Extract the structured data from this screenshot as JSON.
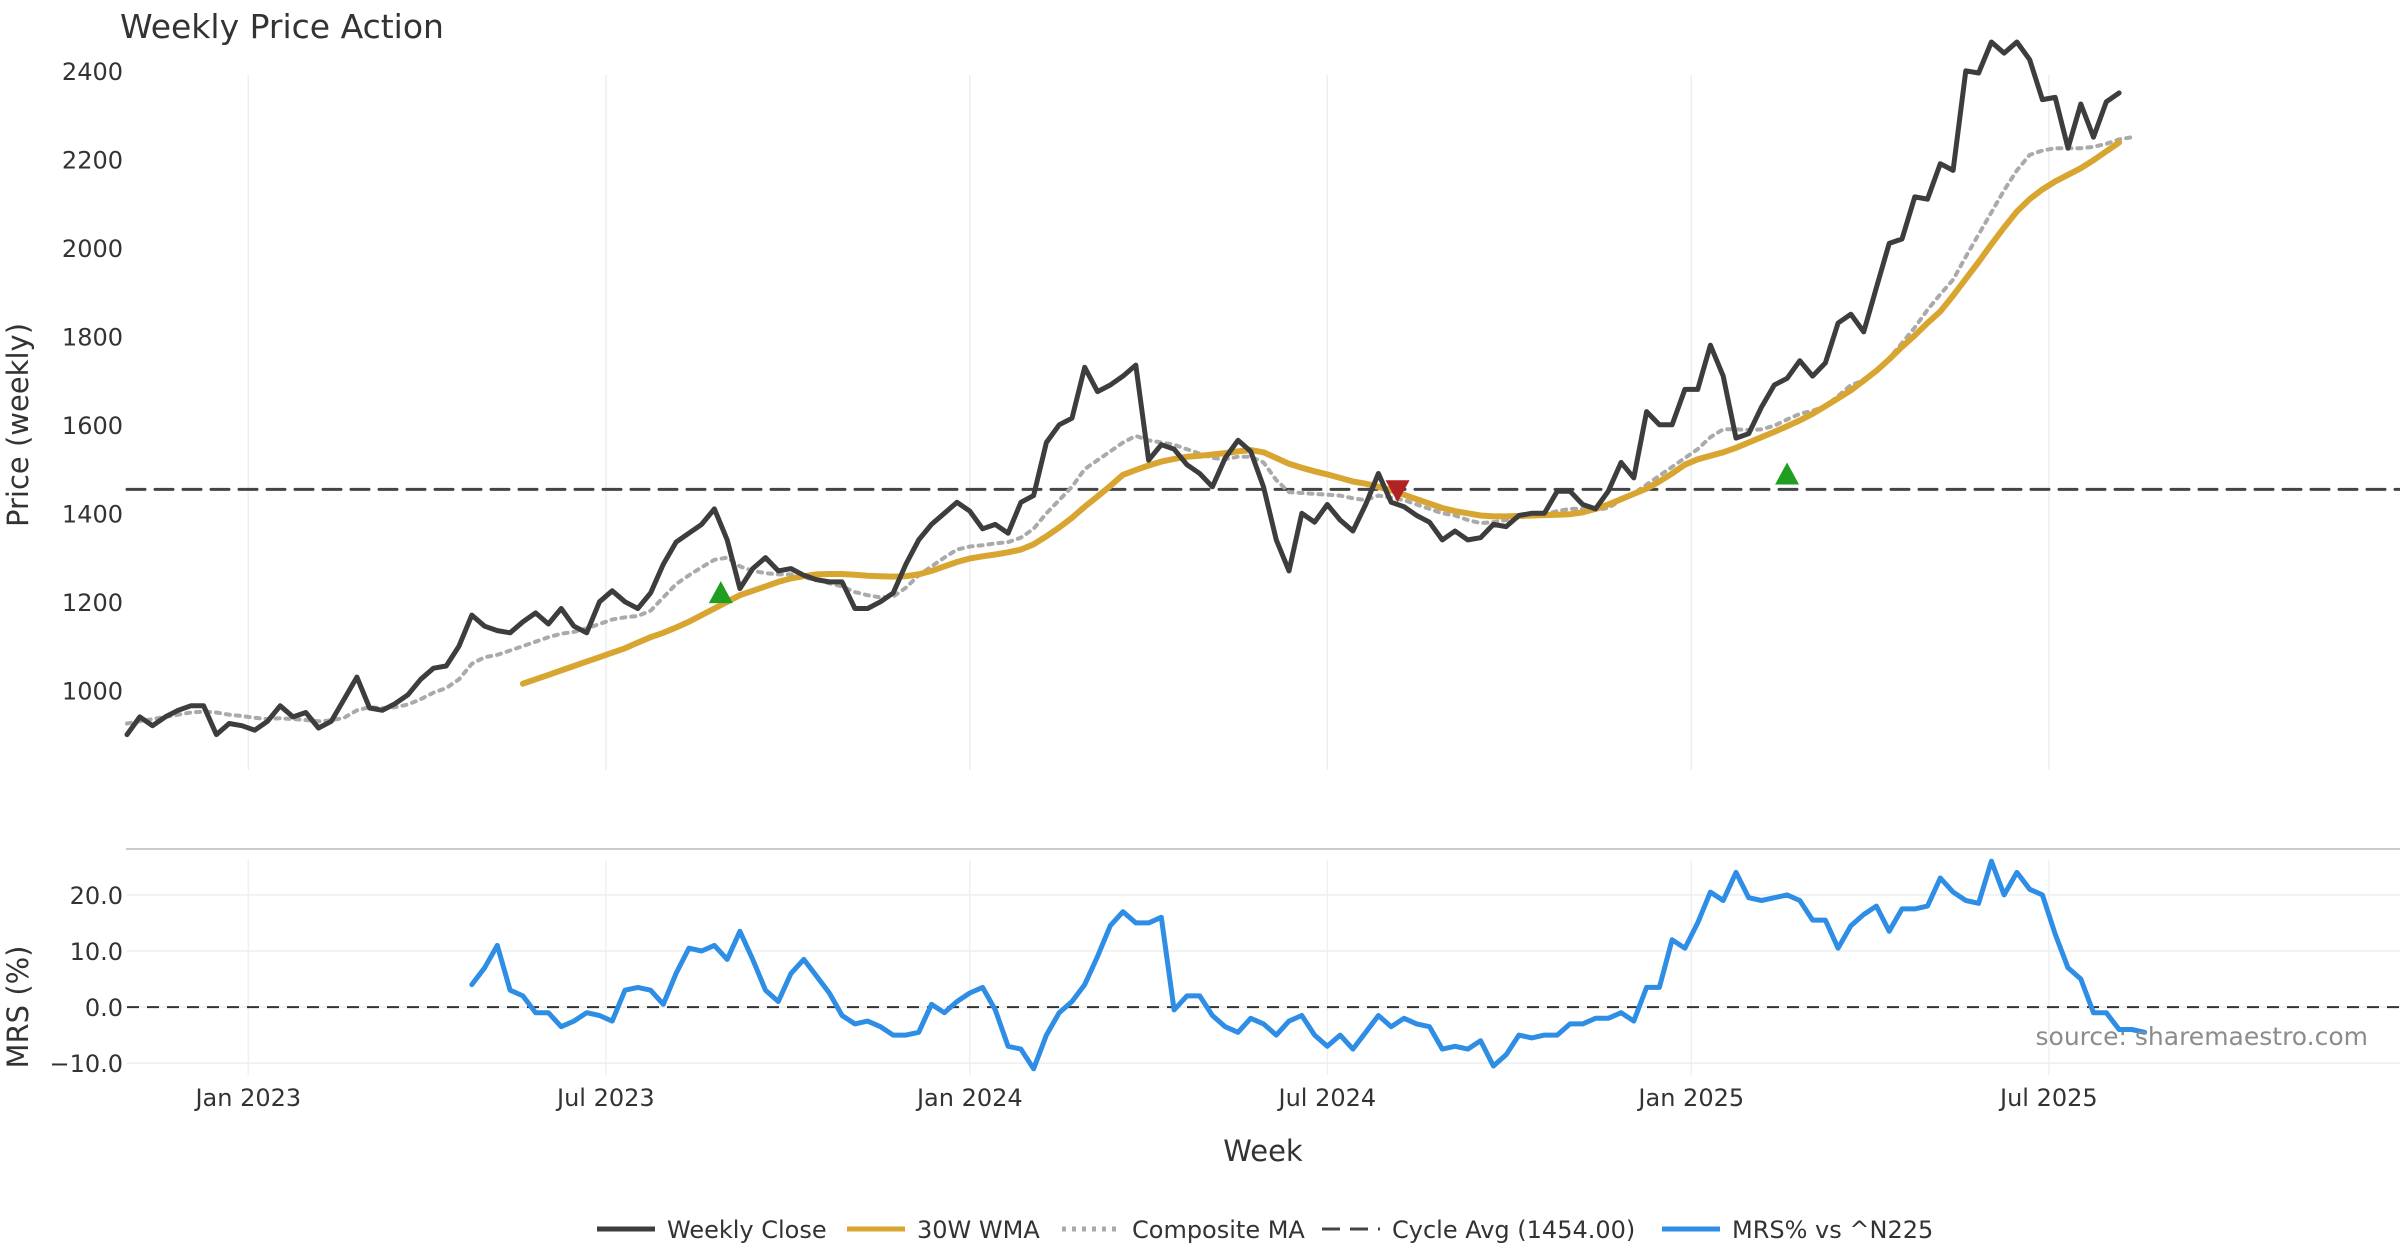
{
  "chart_data": [
    {
      "type": "line",
      "title": "Weekly Price Action",
      "xlabel": "",
      "ylabel": "Price (weekly)",
      "ylim": [
        820,
        2560
      ],
      "xlim": [
        0,
        178
      ],
      "grid": true,
      "x_tick_labels": [
        {
          "label": "Jan 2023",
          "x": 9.5
        },
        {
          "label": "Jul 2023",
          "x": 37.5
        },
        {
          "label": "Jan 2024",
          "x": 66
        },
        {
          "label": "Jul 2024",
          "x": 94
        },
        {
          "label": "Jan 2025",
          "x": 122.5
        },
        {
          "label": "Jul 2025",
          "x": 150.5
        }
      ],
      "y_ticks": [
        1000,
        1200,
        1400,
        1600,
        1800,
        2000,
        2200,
        2400
      ],
      "reference_line": {
        "name": "Cycle Avg (1454.00)",
        "value": 1454.0
      },
      "series": [
        {
          "name": "Weekly Close",
          "color": "#3d3d3d",
          "start": 0,
          "values": [
            900,
            940,
            920,
            940,
            955,
            965,
            965,
            900,
            925,
            920,
            910,
            930,
            965,
            940,
            950,
            915,
            930,
            980,
            1030,
            960,
            955,
            970,
            990,
            1025,
            1050,
            1055,
            1100,
            1170,
            1145,
            1135,
            1130,
            1155,
            1175,
            1150,
            1185,
            1145,
            1130,
            1200,
            1225,
            1200,
            1185,
            1220,
            1285,
            1335,
            1355,
            1375,
            1410,
            1340,
            1230,
            1275,
            1300,
            1270,
            1275,
            1260,
            1250,
            1245,
            1245,
            1185,
            1185,
            1200,
            1220,
            1285,
            1340,
            1375,
            1400,
            1425,
            1405,
            1365,
            1375,
            1355,
            1425,
            1440,
            1560,
            1600,
            1615,
            1730,
            1675,
            1690,
            1710,
            1735,
            1520,
            1555,
            1545,
            1510,
            1490,
            1460,
            1525,
            1565,
            1540,
            1460,
            1340,
            1270,
            1400,
            1380,
            1420,
            1385,
            1360,
            1420,
            1490,
            1425,
            1415,
            1395,
            1380,
            1340,
            1360,
            1340,
            1345,
            1375,
            1370,
            1395,
            1400,
            1400,
            1450,
            1450,
            1420,
            1410,
            1450,
            1515,
            1480,
            1630,
            1600,
            1600,
            1680,
            1680,
            1780,
            1710,
            1570,
            1580,
            1640,
            1690,
            1705,
            1745,
            1710,
            1740,
            1830,
            1850,
            1810,
            1910,
            2010,
            2020,
            2115,
            2110,
            2190,
            2175,
            2400,
            2395,
            2465,
            2440,
            2465,
            2425,
            2335,
            2340,
            2225,
            2325,
            2250,
            2330,
            2350
          ]
        },
        {
          "name": "30W WMA",
          "color": "#d8a531",
          "start": 31,
          "values": [
            1015,
            1025,
            1035,
            1045,
            1055,
            1065,
            1075,
            1085,
            1095,
            1108,
            1120,
            1130,
            1142,
            1155,
            1170,
            1185,
            1200,
            1215,
            1225,
            1235,
            1245,
            1253,
            1258,
            1262,
            1263,
            1263,
            1261,
            1259,
            1258,
            1257,
            1258,
            1262,
            1270,
            1280,
            1290,
            1298,
            1303,
            1307,
            1312,
            1318,
            1330,
            1348,
            1368,
            1390,
            1415,
            1438,
            1462,
            1487,
            1498,
            1508,
            1517,
            1523,
            1528,
            1530,
            1533,
            1536,
            1540,
            1543,
            1538,
            1525,
            1512,
            1503,
            1495,
            1488,
            1480,
            1472,
            1467,
            1460,
            1452,
            1442,
            1432,
            1422,
            1412,
            1405,
            1400,
            1395,
            1393,
            1393,
            1394,
            1395,
            1396,
            1397,
            1398,
            1402,
            1410,
            1420,
            1432,
            1444,
            1456,
            1472,
            1490,
            1510,
            1522,
            1530,
            1538,
            1548,
            1560,
            1572,
            1584,
            1597,
            1610,
            1625,
            1642,
            1660,
            1678,
            1700,
            1722,
            1748,
            1776,
            1802,
            1830,
            1856,
            1892,
            1930,
            1968,
            2008,
            2046,
            2082,
            2110,
            2132,
            2150,
            2165,
            2180,
            2198,
            2218,
            2238
          ]
        },
        {
          "name": "Composite MA",
          "color": "#aaaaaa",
          "start": 0,
          "values": [
            925,
            930,
            935,
            940,
            945,
            950,
            952,
            950,
            945,
            942,
            938,
            935,
            937,
            935,
            933,
            930,
            932,
            938,
            955,
            962,
            960,
            962,
            968,
            980,
            995,
            1005,
            1025,
            1060,
            1075,
            1080,
            1090,
            1100,
            1110,
            1120,
            1128,
            1132,
            1140,
            1150,
            1160,
            1165,
            1168,
            1180,
            1210,
            1240,
            1260,
            1278,
            1295,
            1300,
            1280,
            1270,
            1265,
            1262,
            1262,
            1255,
            1250,
            1242,
            1235,
            1222,
            1215,
            1210,
            1212,
            1232,
            1260,
            1280,
            1300,
            1318,
            1325,
            1328,
            1332,
            1335,
            1345,
            1365,
            1400,
            1430,
            1460,
            1500,
            1520,
            1540,
            1560,
            1575,
            1565,
            1560,
            1555,
            1545,
            1535,
            1525,
            1522,
            1528,
            1528,
            1515,
            1475,
            1448,
            1446,
            1444,
            1442,
            1440,
            1434,
            1430,
            1440,
            1435,
            1430,
            1420,
            1410,
            1400,
            1395,
            1385,
            1378,
            1380,
            1385,
            1390,
            1395,
            1398,
            1405,
            1410,
            1410,
            1408,
            1412,
            1430,
            1445,
            1465,
            1485,
            1505,
            1525,
            1545,
            1572,
            1590,
            1590,
            1588,
            1590,
            1598,
            1612,
            1625,
            1632,
            1642,
            1665,
            1690,
            1700,
            1720,
            1750,
            1785,
            1820,
            1860,
            1895,
            1928,
            1980,
            2030,
            2080,
            2130,
            2175,
            2210,
            2220,
            2225,
            2225,
            2225,
            2228,
            2235,
            2245,
            2250
          ]
        },
        {
          "name": "Cycle Avg (1454.00)",
          "color": "#444444",
          "constant": 1454.0
        }
      ],
      "markers": [
        {
          "type": "buy",
          "x": 46.5,
          "y": 1222,
          "color": "#1f9e22"
        },
        {
          "type": "sell",
          "x": 99.5,
          "y": 1450,
          "color": "#b22222"
        },
        {
          "type": "buy",
          "x": 130,
          "y": 1490,
          "color": "#1f9e22"
        }
      ]
    },
    {
      "type": "line",
      "title": "",
      "xlabel": "Week",
      "ylabel": "MRS (%)",
      "ylim": [
        -13,
        28
      ],
      "xlim": [
        0,
        178
      ],
      "grid": true,
      "y_ticks": [
        -10,
        0,
        10,
        20
      ],
      "y_tick_labels": [
        "−10.0",
        "0.0",
        "10.0",
        "20.0"
      ],
      "zero_line": 0,
      "annotation": "source: sharemaestro.com",
      "series": [
        {
          "name": "MRS% vs ^N225",
          "color": "#2e8de4",
          "start": 27,
          "values": [
            4,
            7,
            11,
            3,
            2,
            -1,
            -1,
            -3.5,
            -2.5,
            -1,
            -1.5,
            -2.5,
            3,
            3.5,
            3,
            0.5,
            6,
            10.5,
            10,
            11,
            8.5,
            13.5,
            8.5,
            3,
            1,
            6,
            8.5,
            5.5,
            2.5,
            -1.5,
            -3,
            -2.5,
            -3.5,
            -5,
            -5,
            -4.5,
            0.5,
            -1,
            1,
            2.5,
            3.5,
            -0.5,
            -7,
            -7.5,
            -11,
            -5,
            -1,
            1,
            4,
            9,
            14.5,
            17,
            15,
            15,
            16,
            -0.5,
            2,
            2,
            -1.5,
            -3.5,
            -4.5,
            -2,
            -3,
            -5,
            -2.5,
            -1.5,
            -5,
            -7,
            -5,
            -7.5,
            -4.5,
            -1.5,
            -3.5,
            -2,
            -3,
            -3.5,
            -7.5,
            -7,
            -7.5,
            -6,
            -10.5,
            -8.5,
            -5,
            -5.5,
            -5,
            -5,
            -3,
            -3,
            -2,
            -2,
            -1,
            -2.5,
            3.5,
            3.5,
            12,
            10.5,
            15,
            20.5,
            19,
            24,
            19.5,
            19,
            19.5,
            20,
            19,
            15.5,
            15.5,
            10.5,
            14.5,
            16.5,
            18,
            13.5,
            17.5,
            17.5,
            18,
            23,
            20.5,
            19,
            18.5,
            26,
            20,
            24,
            21,
            20,
            13,
            7,
            5,
            -1,
            -1,
            -4,
            -4,
            -4.5
          ]
        }
      ]
    }
  ],
  "legend": {
    "position": "bottom-center",
    "items": [
      {
        "label": "Weekly Close",
        "color": "#3d3d3d",
        "style": "solid"
      },
      {
        "label": "30W WMA",
        "color": "#d8a531",
        "style": "solid"
      },
      {
        "label": "Composite MA",
        "color": "#aaaaaa",
        "style": "dotted"
      },
      {
        "label": "Cycle Avg (1454.00)",
        "color": "#444444",
        "style": "dashed"
      },
      {
        "label": "MRS% vs ^N225",
        "color": "#2e8de4",
        "style": "solid"
      }
    ]
  }
}
